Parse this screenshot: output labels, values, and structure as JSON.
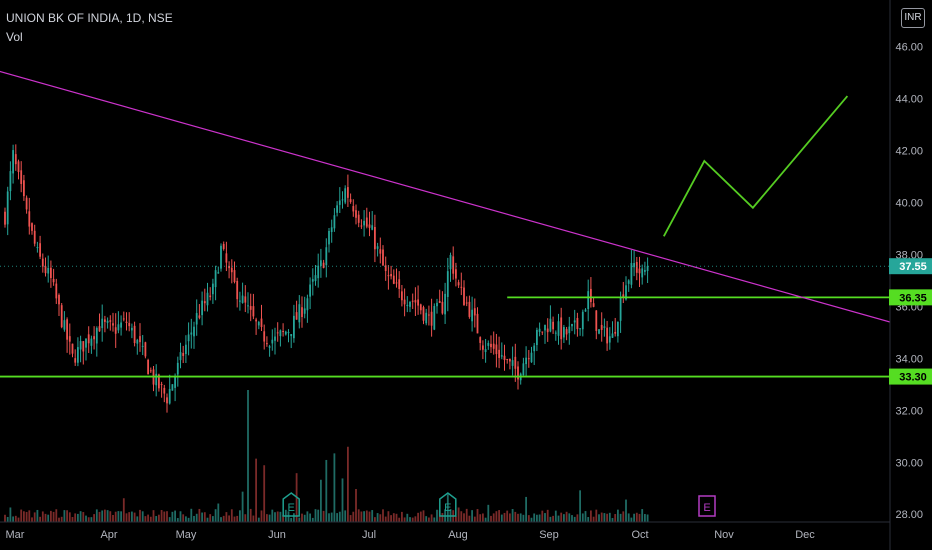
{
  "legend": {
    "title": "UNION BK OF INDIA, 1D, NSE",
    "indicator": "Vol"
  },
  "currency": "INR",
  "colors": {
    "background": "#000000",
    "up": "#26a69a",
    "down": "#ef5350",
    "vol_up": "#1f6b64",
    "vol_down": "#7a2a29",
    "trendline": "#cc33cc",
    "levels": "#55dd22",
    "projection": "#55cc22",
    "last_price": "#26a69a"
  },
  "chart_data": {
    "type": "candlestick",
    "ylim": [
      27.7,
      47.8
    ],
    "y_ticks": [
      "28.00",
      "30.00",
      "32.00",
      "34.00",
      "36.00",
      "38.00",
      "40.00",
      "42.00",
      "44.00",
      "46.00"
    ],
    "x_labels": [
      "Mar",
      "Apr",
      "May",
      "Jun",
      "Jul",
      "Aug",
      "Sep",
      "Oct",
      "Nov",
      "Dec"
    ],
    "price_tags": [
      {
        "label": "37.55",
        "value": 37.55,
        "kind": "last"
      },
      {
        "label": "36.35",
        "value": 36.35,
        "kind": "level"
      },
      {
        "label": "33.30",
        "value": 33.3,
        "kind": "level"
      }
    ],
    "horizontal_lines": [
      {
        "value": 33.3,
        "from_day": -2,
        "to_day": 335
      },
      {
        "value": 36.35,
        "from_day": 186,
        "to_day": 335
      }
    ],
    "trendline": [
      {
        "day": -2,
        "value": 45.05
      },
      {
        "day": 335,
        "value": 35.4
      }
    ],
    "projection": [
      {
        "day": 244,
        "value": 38.7
      },
      {
        "day": 259,
        "value": 41.6
      },
      {
        "day": 277,
        "value": 39.8
      },
      {
        "day": 312,
        "value": 44.1
      }
    ],
    "earnings_markers": [
      {
        "day": 106,
        "label": "E",
        "state": "past"
      },
      {
        "day": 164,
        "label": "E",
        "state": "past"
      },
      {
        "day": 260,
        "label": "E",
        "state": "upcoming"
      }
    ],
    "anchors": [
      [
        0,
        39.5
      ],
      [
        3,
        41.8
      ],
      [
        8,
        39.5
      ],
      [
        12,
        38.0
      ],
      [
        17,
        37.0
      ],
      [
        21,
        35.5
      ],
      [
        25,
        34.0
      ],
      [
        31,
        34.8
      ],
      [
        35,
        35.3
      ],
      [
        40,
        35.1
      ],
      [
        45,
        35.4
      ],
      [
        50,
        34.4
      ],
      [
        55,
        33.2
      ],
      [
        60,
        32.5
      ],
      [
        66,
        34.2
      ],
      [
        71,
        35.6
      ],
      [
        77,
        36.6
      ],
      [
        80,
        38.2
      ],
      [
        84,
        37.0
      ],
      [
        88,
        36.2
      ],
      [
        95,
        34.9
      ],
      [
        100,
        34.7
      ],
      [
        106,
        35.2
      ],
      [
        111,
        36.1
      ],
      [
        118,
        37.8
      ],
      [
        122,
        39.5
      ],
      [
        126,
        40.5
      ],
      [
        131,
        39.5
      ],
      [
        136,
        38.8
      ],
      [
        141,
        37.2
      ],
      [
        146,
        36.5
      ],
      [
        152,
        36.2
      ],
      [
        157,
        35.5
      ],
      [
        162,
        36.0
      ],
      [
        165,
        37.9
      ],
      [
        168,
        36.7
      ],
      [
        172,
        35.9
      ],
      [
        177,
        34.6
      ],
      [
        183,
        34.2
      ],
      [
        187,
        33.7
      ],
      [
        190,
        33.5
      ],
      [
        194,
        34.3
      ],
      [
        198,
        35.0
      ],
      [
        202,
        35.4
      ],
      [
        207,
        34.9
      ],
      [
        212,
        35.2
      ],
      [
        216,
        36.4
      ],
      [
        220,
        35.0
      ],
      [
        225,
        34.8
      ],
      [
        229,
        36.7
      ],
      [
        233,
        37.6
      ],
      [
        236,
        37.2
      ],
      [
        238,
        37.55
      ]
    ],
    "volume_scale_max": 100,
    "volume_spikes": [
      {
        "day": 2,
        "value": 11
      },
      {
        "day": 14,
        "value": 8
      },
      {
        "day": 44,
        "value": 18
      },
      {
        "day": 69,
        "value": 10
      },
      {
        "day": 79,
        "value": 14
      },
      {
        "day": 88,
        "value": 23
      },
      {
        "day": 90,
        "value": 100
      },
      {
        "day": 93,
        "value": 48
      },
      {
        "day": 96,
        "value": 43
      },
      {
        "day": 108,
        "value": 37
      },
      {
        "day": 117,
        "value": 32
      },
      {
        "day": 119,
        "value": 47
      },
      {
        "day": 122,
        "value": 52
      },
      {
        "day": 125,
        "value": 33
      },
      {
        "day": 127,
        "value": 57
      },
      {
        "day": 130,
        "value": 25
      },
      {
        "day": 164,
        "value": 21
      },
      {
        "day": 168,
        "value": 11
      },
      {
        "day": 179,
        "value": 13
      },
      {
        "day": 193,
        "value": 19
      },
      {
        "day": 213,
        "value": 24
      },
      {
        "day": 230,
        "value": 17
      },
      {
        "day": 234,
        "value": 7
      }
    ]
  }
}
